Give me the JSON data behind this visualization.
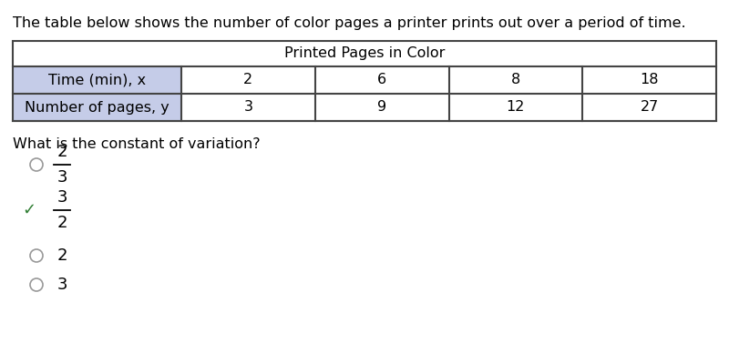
{
  "intro_text": "The table below shows the number of color pages a printer prints out over a period of time.",
  "table_title": "Printed Pages in Color",
  "row1_header": "Time (min), x",
  "row2_header": "Number of pages, y",
  "row1_values": [
    "2",
    "6",
    "8",
    "18"
  ],
  "row2_values": [
    "3",
    "9",
    "12",
    "27"
  ],
  "question": "What is the constant of variation?",
  "options": [
    {
      "numerator": "2",
      "denominator": "3",
      "correct": false
    },
    {
      "numerator": "3",
      "denominator": "2",
      "correct": true
    },
    {
      "numerator": "2",
      "denominator": null,
      "correct": false
    },
    {
      "numerator": "3",
      "denominator": null,
      "correct": false
    }
  ],
  "header_bg": "#c5cce8",
  "table_border": "#444444",
  "check_color": "#2e7d32",
  "text_color": "#000000",
  "bg_color": "#ffffff",
  "fig_width": 8.0,
  "fig_height": 3.88,
  "dpi": 100
}
